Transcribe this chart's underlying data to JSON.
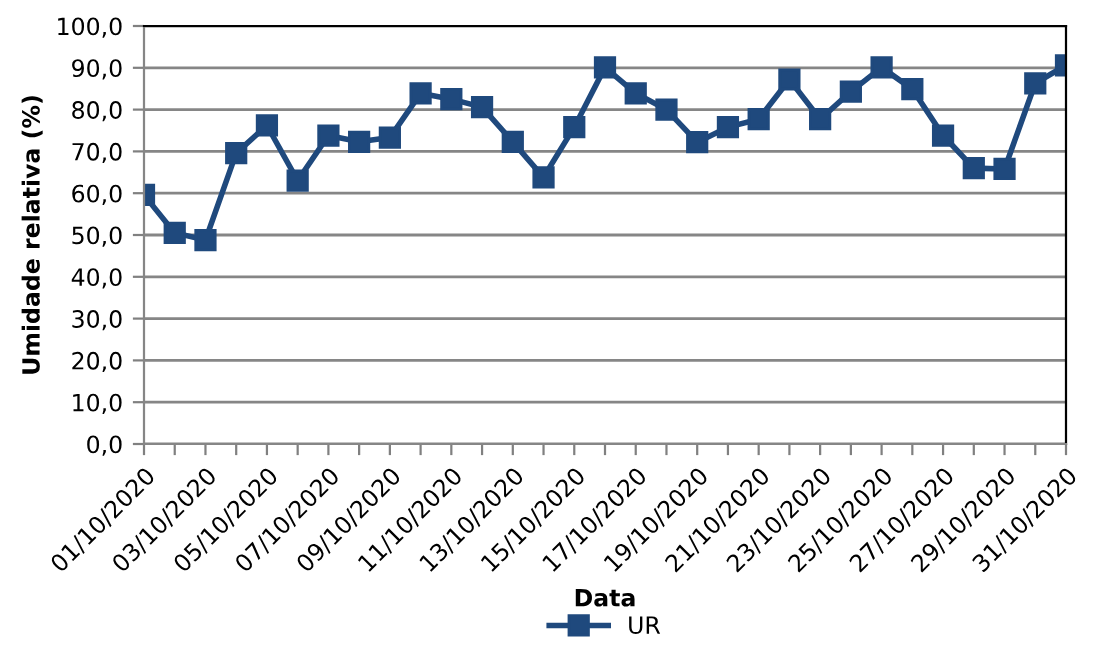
{
  "chart_data": {
    "type": "line",
    "xlabel": "Data",
    "ylabel": "Umidade relativa (%)",
    "categories": [
      "01/10/2020",
      null,
      "03/10/2020",
      null,
      "05/10/2020",
      null,
      "07/10/2020",
      null,
      "09/10/2020",
      null,
      "11/10/2020",
      null,
      "13/10/2020",
      null,
      "15/10/2020",
      null,
      "17/10/2020",
      null,
      "19/10/2020",
      null,
      "21/10/2020",
      null,
      "23/10/2020",
      null,
      "25/10/2020",
      null,
      "27/10/2020",
      null,
      "29/10/2020",
      null,
      "31/10/2020"
    ],
    "series": [
      {
        "name": "UR",
        "color": "#1f497d",
        "values": [
          59.6,
          50.5,
          48.8,
          69.6,
          76.2,
          63.0,
          73.8,
          72.3,
          73.3,
          83.9,
          82.5,
          80.6,
          72.3,
          63.8,
          75.8,
          90.1,
          83.9,
          80.0,
          72.2,
          75.8,
          77.7,
          87.2,
          77.7,
          84.3,
          90.1,
          84.9,
          73.8,
          66.0,
          65.8,
          86.3,
          90.6
        ]
      }
    ],
    "ylim": [
      0,
      100
    ],
    "yticks": [
      {
        "value": 0,
        "label": "0,0"
      },
      {
        "value": 10,
        "label": "10,0"
      },
      {
        "value": 20,
        "label": "20,0"
      },
      {
        "value": 30,
        "label": "30,0"
      },
      {
        "value": 40,
        "label": "40,0"
      },
      {
        "value": 50,
        "label": "50,0"
      },
      {
        "value": 60,
        "label": "60,0"
      },
      {
        "value": 70,
        "label": "70,0"
      },
      {
        "value": 80,
        "label": "80,0"
      },
      {
        "value": 90,
        "label": "90,0"
      },
      {
        "value": 100,
        "label": "100,0"
      }
    ],
    "grid": "y",
    "legend": "bottom",
    "marker": "square",
    "line_style": "solid"
  }
}
